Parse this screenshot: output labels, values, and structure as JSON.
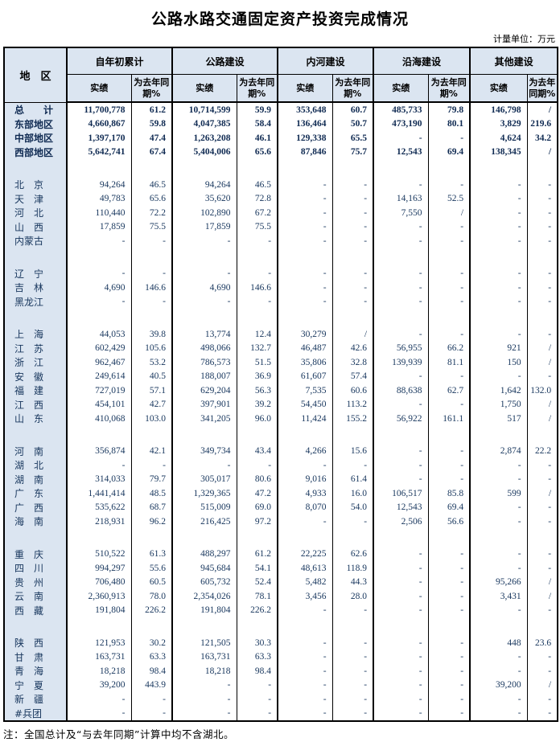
{
  "title": "公路水路交通固定资产投资完成情况",
  "unit_label": "计量单位：万元",
  "note": "注：全国总计及“与去年同期”计算中均不含湖北。",
  "colors": {
    "header_bg": "#dbe5f1",
    "grid": "#000000",
    "number_text": "#17365d"
  },
  "table": {
    "region_header": "地　区",
    "groups": [
      {
        "label": "自年初累计"
      },
      {
        "label": "公路建设"
      },
      {
        "label": "内河建设"
      },
      {
        "label": "沿海建设"
      },
      {
        "label": "其他建设"
      }
    ],
    "sub_headers": [
      "实绩",
      "为去年同期%"
    ],
    "rows": [
      {
        "region": "总　　计",
        "bold": true,
        "values": [
          "11,700,778",
          "61.2",
          "10,714,599",
          "59.9",
          "353,648",
          "60.7",
          "485,733",
          "79.8",
          "146,798",
          "/"
        ]
      },
      {
        "region": "东部地区",
        "bold": true,
        "values": [
          "4,660,867",
          "59.8",
          "4,047,385",
          "58.4",
          "136,464",
          "50.7",
          "473,190",
          "80.1",
          "3,829",
          "219.6"
        ]
      },
      {
        "region": "中部地区",
        "bold": true,
        "values": [
          "1,397,170",
          "47.4",
          "1,263,208",
          "46.1",
          "129,338",
          "65.5",
          "-",
          "-",
          "4,624",
          "34.2"
        ]
      },
      {
        "region": "西部地区",
        "bold": true,
        "values": [
          "5,642,741",
          "67.4",
          "5,404,006",
          "65.6",
          "87,846",
          "75.7",
          "12,543",
          "69.4",
          "138,345",
          "/"
        ]
      },
      {
        "blank": true
      },
      {
        "region": "北　京",
        "values": [
          "94,264",
          "46.5",
          "94,264",
          "46.5",
          "-",
          "-",
          "-",
          "-",
          "-",
          "-"
        ]
      },
      {
        "region": "天　津",
        "values": [
          "49,783",
          "65.6",
          "35,620",
          "72.8",
          "-",
          "-",
          "14,163",
          "52.5",
          "-",
          "-"
        ]
      },
      {
        "region": "河　北",
        "values": [
          "110,440",
          "72.2",
          "102,890",
          "67.2",
          "-",
          "-",
          "7,550",
          "/",
          "-",
          "-"
        ]
      },
      {
        "region": "山　西",
        "values": [
          "17,859",
          "75.5",
          "17,859",
          "75.5",
          "-",
          "-",
          "-",
          "-",
          "-",
          "-"
        ]
      },
      {
        "region": "内蒙古",
        "values": [
          "-",
          "-",
          "-",
          "-",
          "-",
          "-",
          "-",
          "-",
          "-",
          "-"
        ]
      },
      {
        "blank": true
      },
      {
        "region": "辽　宁",
        "values": [
          "-",
          "-",
          "-",
          "-",
          "-",
          "-",
          "-",
          "-",
          "-",
          "-"
        ]
      },
      {
        "region": "吉　林",
        "values": [
          "4,690",
          "146.6",
          "4,690",
          "146.6",
          "-",
          "-",
          "-",
          "-",
          "-",
          "-"
        ]
      },
      {
        "region": "黑龙江",
        "values": [
          "-",
          "-",
          "-",
          "-",
          "-",
          "-",
          "-",
          "-",
          "-",
          "-"
        ]
      },
      {
        "blank": true
      },
      {
        "region": "上　海",
        "values": [
          "44,053",
          "39.8",
          "13,774",
          "12.4",
          "30,279",
          "/",
          "-",
          "-",
          "-",
          "-"
        ]
      },
      {
        "region": "江　苏",
        "values": [
          "602,429",
          "105.6",
          "498,066",
          "132.7",
          "46,487",
          "42.6",
          "56,955",
          "66.2",
          "921",
          "/"
        ]
      },
      {
        "region": "浙　江",
        "values": [
          "962,467",
          "53.2",
          "786,573",
          "51.5",
          "35,806",
          "32.8",
          "139,939",
          "81.1",
          "150",
          "/"
        ]
      },
      {
        "region": "安　徽",
        "values": [
          "249,614",
          "40.5",
          "188,007",
          "36.9",
          "61,607",
          "57.4",
          "-",
          "-",
          "-",
          "-"
        ]
      },
      {
        "region": "福　建",
        "values": [
          "727,019",
          "57.1",
          "629,204",
          "56.3",
          "7,535",
          "60.6",
          "88,638",
          "62.7",
          "1,642",
          "132.0"
        ]
      },
      {
        "region": "江　西",
        "values": [
          "454,101",
          "42.7",
          "397,901",
          "39.2",
          "54,450",
          "113.2",
          "-",
          "-",
          "1,750",
          "/"
        ]
      },
      {
        "region": "山　东",
        "values": [
          "410,068",
          "103.0",
          "341,205",
          "96.0",
          "11,424",
          "155.2",
          "56,922",
          "161.1",
          "517",
          "/"
        ]
      },
      {
        "blank": true
      },
      {
        "region": "河　南",
        "values": [
          "356,874",
          "42.1",
          "349,734",
          "43.4",
          "4,266",
          "15.6",
          "-",
          "-",
          "2,874",
          "22.2"
        ]
      },
      {
        "region": "湖　北",
        "values": [
          "-",
          "-",
          "-",
          "-",
          "-",
          "-",
          "-",
          "-",
          "-",
          "-"
        ]
      },
      {
        "region": "湖　南",
        "values": [
          "314,033",
          "79.7",
          "305,017",
          "80.6",
          "9,016",
          "61.4",
          "-",
          "-",
          "-",
          "-"
        ]
      },
      {
        "region": "广　东",
        "values": [
          "1,441,414",
          "48.5",
          "1,329,365",
          "47.2",
          "4,933",
          "16.0",
          "106,517",
          "85.8",
          "599",
          "/"
        ]
      },
      {
        "region": "广　西",
        "values": [
          "535,622",
          "68.7",
          "515,009",
          "69.0",
          "8,070",
          "54.0",
          "12,543",
          "69.4",
          "-",
          "-"
        ]
      },
      {
        "region": "海　南",
        "values": [
          "218,931",
          "96.2",
          "216,425",
          "97.2",
          "-",
          "-",
          "2,506",
          "56.6",
          "-",
          "-"
        ]
      },
      {
        "blank": true
      },
      {
        "region": "重　庆",
        "values": [
          "510,522",
          "61.3",
          "488,297",
          "61.2",
          "22,225",
          "62.6",
          "-",
          "-",
          "-",
          "-"
        ]
      },
      {
        "region": "四　川",
        "values": [
          "994,297",
          "55.6",
          "945,684",
          "54.1",
          "48,613",
          "118.9",
          "-",
          "-",
          "-",
          "-"
        ]
      },
      {
        "region": "贵　州",
        "values": [
          "706,480",
          "60.5",
          "605,732",
          "52.4",
          "5,482",
          "44.3",
          "-",
          "-",
          "95,266",
          "/"
        ]
      },
      {
        "region": "云　南",
        "values": [
          "2,360,913",
          "78.0",
          "2,354,026",
          "78.1",
          "3,456",
          "28.0",
          "-",
          "-",
          "3,431",
          "/"
        ]
      },
      {
        "region": "西　藏",
        "values": [
          "191,804",
          "226.2",
          "191,804",
          "226.2",
          "-",
          "-",
          "-",
          "-",
          "-",
          "-"
        ]
      },
      {
        "blank": true
      },
      {
        "region": "陕　西",
        "values": [
          "121,953",
          "30.2",
          "121,505",
          "30.3",
          "-",
          "-",
          "-",
          "-",
          "448",
          "23.6"
        ]
      },
      {
        "region": "甘　肃",
        "values": [
          "163,731",
          "63.3",
          "163,731",
          "63.3",
          "-",
          "-",
          "-",
          "-",
          "-",
          "-"
        ]
      },
      {
        "region": "青　海",
        "values": [
          "18,218",
          "98.4",
          "18,218",
          "98.4",
          "-",
          "-",
          "-",
          "-",
          "-",
          "-"
        ]
      },
      {
        "region": "宁　夏",
        "values": [
          "39,200",
          "443.9",
          "-",
          "-",
          "-",
          "-",
          "-",
          "-",
          "39,200",
          "/"
        ]
      },
      {
        "region": "新　疆",
        "values": [
          "-",
          "-",
          "-",
          "-",
          "-",
          "-",
          "-",
          "-",
          "-",
          "-"
        ]
      },
      {
        "region": "#兵团",
        "values": [
          "-",
          "-",
          "-",
          "-",
          "-",
          "-",
          "-",
          "-",
          "-",
          "-"
        ]
      }
    ]
  }
}
